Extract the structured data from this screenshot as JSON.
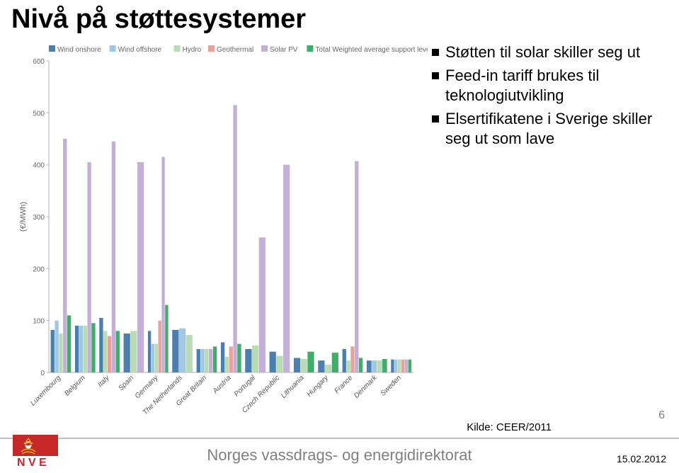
{
  "title": "Nivå på støttesystemer",
  "bullets": [
    "Støtten til solar skiller seg ut",
    "Feed-in tariff brukes til teknologiutvikling",
    "Elsertifikatene i Sverige skiller seg ut som lave"
  ],
  "source": "Kilde: CEER/2011",
  "page_number": "6",
  "footer_text": "Norges vassdrags- og energidirektorat",
  "footer_date": "15.02.2012",
  "chart": {
    "type": "bar",
    "ylabel": "(€/MWh)",
    "ylim": [
      0,
      600
    ],
    "ytick_step": 100,
    "legend": [
      {
        "label": "Wind onshore",
        "color": "#4a7fb0"
      },
      {
        "label": "Wind offshore",
        "color": "#9fc9e3"
      },
      {
        "label": "Hydro",
        "color": "#b9dbb5"
      },
      {
        "label": "Geothermal",
        "color": "#e7a29c"
      },
      {
        "label": "Solar PV",
        "color": "#c4b0d6"
      },
      {
        "label": "Total Weighted average support level",
        "color": "#3fae6b"
      }
    ],
    "background_color": "#ffffff",
    "axis_color": "#b0b0b0",
    "label_fontsize": 10,
    "legend_fontsize": 10,
    "xlabel_rotation": -45,
    "bar_group_width": 0.85,
    "series_keys": [
      "wind_onshore",
      "wind_offshore",
      "hydro",
      "geothermal",
      "solar_pv",
      "total"
    ],
    "colors": {
      "wind_onshore": "#4a7fb0",
      "wind_offshore": "#9fc9e3",
      "hydro": "#b9dbb5",
      "geothermal": "#e7a29c",
      "solar_pv": "#c4b0d6",
      "total": "#3fae6b"
    },
    "categories": [
      "Luxembourg",
      "Belgium",
      "Italy",
      "Spain",
      "Germany",
      "The Netherlands",
      "Great Britain",
      "Austria",
      "Portugal",
      "Czech Republic",
      "Lithuania",
      "Hungary",
      "France",
      "Denmark",
      "Sweden"
    ],
    "data": [
      {
        "wind_onshore": 82,
        "wind_offshore": 100,
        "hydro": 75,
        "geothermal": null,
        "solar_pv": 450,
        "total": 110
      },
      {
        "wind_onshore": 90,
        "wind_offshore": 90,
        "hydro": 90,
        "geothermal": null,
        "solar_pv": 405,
        "total": 95
      },
      {
        "wind_onshore": 105,
        "wind_offshore": null,
        "hydro": 80,
        "geothermal": 70,
        "solar_pv": 445,
        "total": 80
      },
      {
        "wind_onshore": 75,
        "wind_offshore": null,
        "hydro": 80,
        "geothermal": null,
        "solar_pv": 405,
        "total": null
      },
      {
        "wind_onshore": 80,
        "wind_offshore": 55,
        "hydro": 55,
        "geothermal": 100,
        "solar_pv": 415,
        "total": 130
      },
      {
        "wind_onshore": 82,
        "wind_offshore": 85,
        "hydro": 72,
        "geothermal": null,
        "solar_pv": null,
        "total": null
      },
      {
        "wind_onshore": 45,
        "wind_offshore": 45,
        "hydro": 45,
        "geothermal": null,
        "solar_pv": 45,
        "total": 50
      },
      {
        "wind_onshore": 58,
        "wind_offshore": null,
        "hydro": 30,
        "geothermal": 50,
        "solar_pv": 515,
        "total": 55
      },
      {
        "wind_onshore": 45,
        "wind_offshore": null,
        "hydro": 52,
        "geothermal": null,
        "solar_pv": 260,
        "total": null
      },
      {
        "wind_onshore": 40,
        "wind_offshore": null,
        "hydro": 32,
        "geothermal": null,
        "solar_pv": 400,
        "total": null
      },
      {
        "wind_onshore": 28,
        "wind_offshore": null,
        "hydro": 26,
        "geothermal": null,
        "solar_pv": null,
        "total": 40
      },
      {
        "wind_onshore": 23,
        "wind_offshore": null,
        "hydro": 15,
        "geothermal": null,
        "solar_pv": null,
        "total": 38
      },
      {
        "wind_onshore": 45,
        "wind_offshore": null,
        "hydro": 23,
        "geothermal": 50,
        "solar_pv": 407,
        "total": 28
      },
      {
        "wind_onshore": 23,
        "wind_offshore": 23,
        "hydro": 23,
        "geothermal": null,
        "solar_pv": null,
        "total": 26
      },
      {
        "wind_onshore": 25,
        "wind_offshore": 25,
        "hydro": 25,
        "geothermal": 25,
        "solar_pv": 25,
        "total": 25
      }
    ]
  }
}
